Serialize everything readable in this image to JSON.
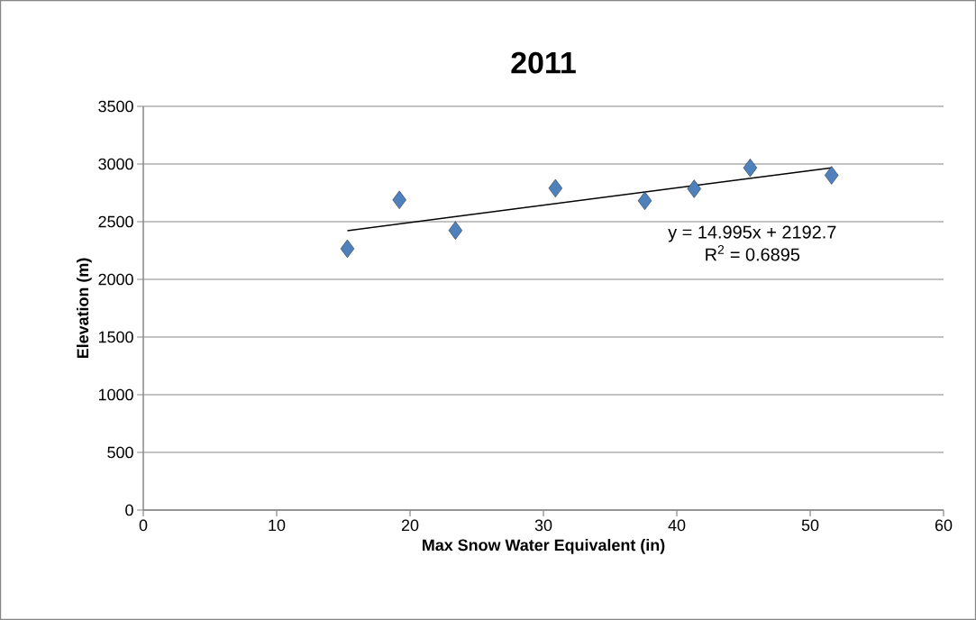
{
  "chart_data": {
    "type": "scatter",
    "title": "2011",
    "xlabel": "Max Snow Water Equivalent (in)",
    "ylabel": "Elevation (m)",
    "xlim": [
      0,
      60
    ],
    "xticks": [
      0,
      10,
      20,
      30,
      40,
      50,
      60
    ],
    "ylim": [
      0,
      3500
    ],
    "yticks": [
      0,
      500,
      1000,
      1500,
      2000,
      2500,
      3000,
      3500
    ],
    "grid": "y",
    "legend": false,
    "marker": "diamond",
    "series": [
      {
        "color": "#4f81bd",
        "x": [
          15.3,
          19.2,
          23.4,
          30.9,
          37.6,
          41.3,
          45.5,
          51.6
        ],
        "values": [
          2266,
          2689,
          2424,
          2790,
          2681,
          2785,
          2967,
          2902
        ]
      },
      {
        "type": "line",
        "color": "#000000",
        "marker": "none",
        "x": [
          15.3,
          51.6
        ],
        "values": [
          2422,
          2967
        ]
      }
    ],
    "annotations": [
      "y = 14.995x + 2192.7",
      "R$^{2}$ = 0.6895"
    ]
  }
}
